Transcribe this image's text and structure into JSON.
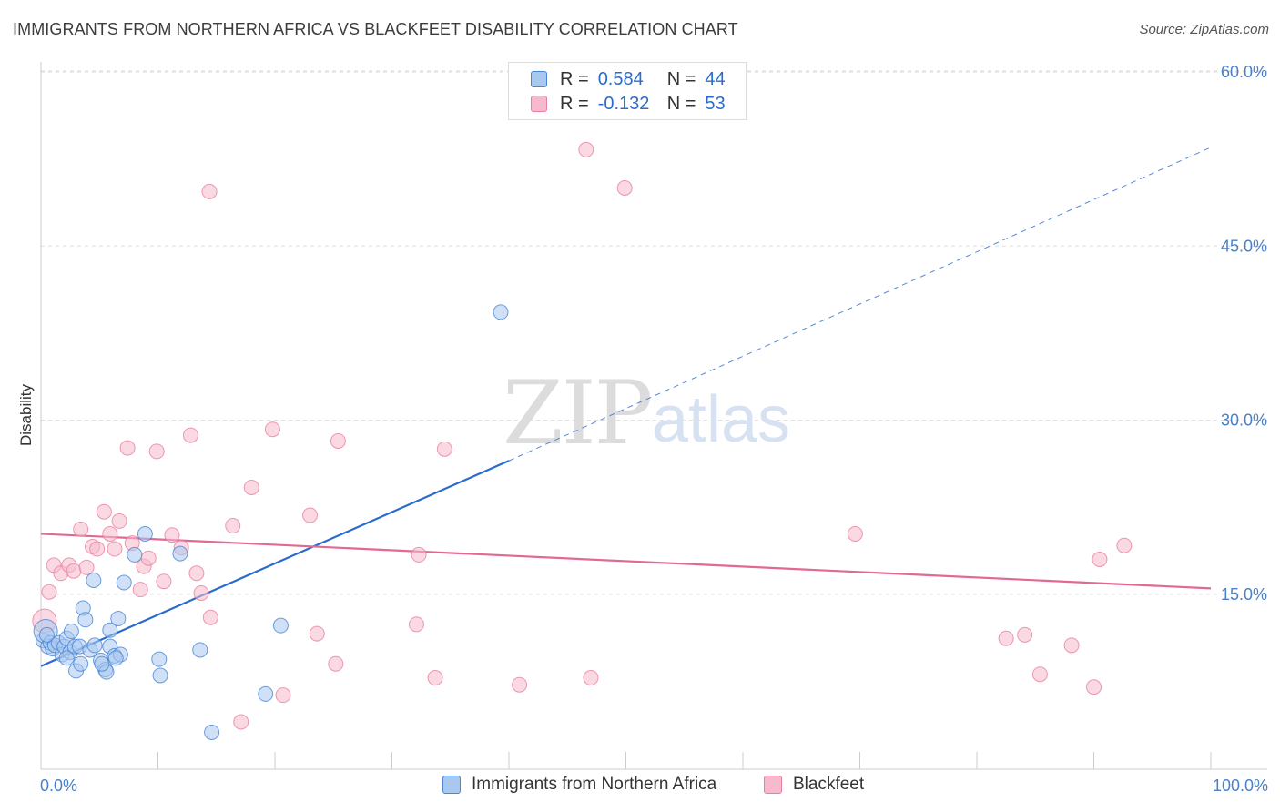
{
  "title": "IMMIGRANTS FROM NORTHERN AFRICA VS BLACKFEET DISABILITY CORRELATION CHART",
  "source": "Source: ZipAtlas.com",
  "watermark": {
    "zip": "ZIP",
    "atlas": "atlas"
  },
  "legend": {
    "rows": [
      {
        "r_label": "R =",
        "r_value": "0.584",
        "n_label": "N =",
        "n_value": "44"
      },
      {
        "r_label": "R =",
        "r_value": "-0.132",
        "n_label": "N =",
        "n_value": "53"
      }
    ]
  },
  "colors": {
    "blue_fill": "#a9c8f0",
    "blue_stroke": "#4a84d4",
    "blue_line": "#2a6ccc",
    "pink_fill": "#f7b9cc",
    "pink_stroke": "#e87fa0",
    "pink_line": "#e06a94",
    "grid": "#dddddd",
    "axis_text": "#4a7fc9"
  },
  "chart_data": {
    "type": "scatter",
    "title": "IMMIGRANTS FROM NORTHERN AFRICA VS BLACKFEET DISABILITY CORRELATION CHART",
    "xlabel": "",
    "ylabel": "Disability",
    "xlim": [
      0,
      100
    ],
    "ylim": [
      0,
      60
    ],
    "x_tick_labels": [
      "0.0%",
      "100.0%"
    ],
    "y_ticks": [
      15,
      30,
      45,
      60
    ],
    "y_tick_labels": [
      "15.0%",
      "30.0%",
      "45.0%",
      "60.0%"
    ],
    "grid": true,
    "series": [
      {
        "name": "Immigrants from Northern Africa",
        "r": 0.584,
        "n": 44,
        "trend": {
          "x0": 0,
          "y0": 8.8,
          "x1": 40,
          "y1": 26.5,
          "dash_x1": 100,
          "dash_y1": 53.5
        },
        "points": [
          [
            0.2,
            11.0
          ],
          [
            0.4,
            11.8
          ],
          [
            0.6,
            10.5
          ],
          [
            0.8,
            10.8
          ],
          [
            1.0,
            10.3
          ],
          [
            1.2,
            10.6
          ],
          [
            1.5,
            10.8
          ],
          [
            1.8,
            9.8
          ],
          [
            2.0,
            10.5
          ],
          [
            2.2,
            11.2
          ],
          [
            2.5,
            10.0
          ],
          [
            2.6,
            11.8
          ],
          [
            2.9,
            10.5
          ],
          [
            3.0,
            8.4
          ],
          [
            3.3,
            10.5
          ],
          [
            3.4,
            9.0
          ],
          [
            3.6,
            13.8
          ],
          [
            3.8,
            12.8
          ],
          [
            4.2,
            10.2
          ],
          [
            4.5,
            16.2
          ],
          [
            4.6,
            10.6
          ],
          [
            5.1,
            9.3
          ],
          [
            5.5,
            8.5
          ],
          [
            5.6,
            8.3
          ],
          [
            5.9,
            10.5
          ],
          [
            5.9,
            11.9
          ],
          [
            6.3,
            9.7
          ],
          [
            6.6,
            12.9
          ],
          [
            6.8,
            9.8
          ],
          [
            7.1,
            16.0
          ],
          [
            8.0,
            18.4
          ],
          [
            8.9,
            20.2
          ],
          [
            10.1,
            9.4
          ],
          [
            10.2,
            8.0
          ],
          [
            11.9,
            18.5
          ],
          [
            13.6,
            10.2
          ],
          [
            14.6,
            3.1
          ],
          [
            19.2,
            6.4
          ],
          [
            20.5,
            12.3
          ],
          [
            39.3,
            39.3
          ],
          [
            0.5,
            11.5
          ],
          [
            2.2,
            9.5
          ],
          [
            5.2,
            9.0
          ],
          [
            6.4,
            9.5
          ]
        ]
      },
      {
        "name": "Blackfeet",
        "r": -0.132,
        "n": 53,
        "trend": {
          "x0": 0,
          "y0": 20.2,
          "x1": 100,
          "y1": 15.5
        },
        "points": [
          [
            0.3,
            12.7
          ],
          [
            0.7,
            15.2
          ],
          [
            1.1,
            17.5
          ],
          [
            1.7,
            16.8
          ],
          [
            2.4,
            17.5
          ],
          [
            2.8,
            17.0
          ],
          [
            3.4,
            20.6
          ],
          [
            3.9,
            17.3
          ],
          [
            4.4,
            19.1
          ],
          [
            4.8,
            18.9
          ],
          [
            5.4,
            22.1
          ],
          [
            5.9,
            20.2
          ],
          [
            6.3,
            18.9
          ],
          [
            6.7,
            21.3
          ],
          [
            7.4,
            27.6
          ],
          [
            7.8,
            19.4
          ],
          [
            8.5,
            15.4
          ],
          [
            8.8,
            17.4
          ],
          [
            9.2,
            18.1
          ],
          [
            9.9,
            27.3
          ],
          [
            10.5,
            16.1
          ],
          [
            11.2,
            20.1
          ],
          [
            12.0,
            19.0
          ],
          [
            12.8,
            28.7
          ],
          [
            13.3,
            16.8
          ],
          [
            13.7,
            15.1
          ],
          [
            14.4,
            49.7
          ],
          [
            14.5,
            13.0
          ],
          [
            16.4,
            20.9
          ],
          [
            17.1,
            4.0
          ],
          [
            18.0,
            24.2
          ],
          [
            19.8,
            29.2
          ],
          [
            20.7,
            6.3
          ],
          [
            23.0,
            21.8
          ],
          [
            23.6,
            11.6
          ],
          [
            25.2,
            9.0
          ],
          [
            25.4,
            28.2
          ],
          [
            32.1,
            12.4
          ],
          [
            32.3,
            18.4
          ],
          [
            33.7,
            7.8
          ],
          [
            34.5,
            27.5
          ],
          [
            40.9,
            7.2
          ],
          [
            46.6,
            53.3
          ],
          [
            47.0,
            7.8
          ],
          [
            49.9,
            50.0
          ],
          [
            69.6,
            20.2
          ],
          [
            82.5,
            11.2
          ],
          [
            84.1,
            11.5
          ],
          [
            85.4,
            8.1
          ],
          [
            88.1,
            10.6
          ],
          [
            90.0,
            7.0
          ],
          [
            90.5,
            18.0
          ],
          [
            92.6,
            19.2
          ]
        ]
      }
    ]
  },
  "bottom_legend": [
    {
      "label": "Immigrants from Northern Africa"
    },
    {
      "label": "Blackfeet"
    }
  ]
}
